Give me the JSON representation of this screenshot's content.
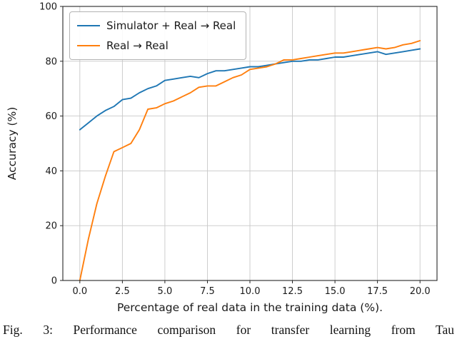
{
  "caption": {
    "text": "Fig. 3: Performance comparison for transfer learning from Tau"
  },
  "chart_data": {
    "type": "line",
    "title": "",
    "xlabel": "Percentage of real data in the training data (%).",
    "ylabel": "Accuracy (%)",
    "xlim": [
      -1,
      21
    ],
    "ylim": [
      0,
      100
    ],
    "grid": true,
    "grid_color": "#c8c8c8",
    "legend_position": "upper left",
    "xticks": [
      0.0,
      2.5,
      5.0,
      7.5,
      10.0,
      12.5,
      15.0,
      17.5,
      20.0
    ],
    "xtick_labels": [
      "0.0",
      "2.5",
      "5.0",
      "7.5",
      "10.0",
      "12.5",
      "15.0",
      "17.5",
      "20.0"
    ],
    "yticks": [
      0,
      20,
      40,
      60,
      80,
      100
    ],
    "ytick_labels": [
      "0",
      "20",
      "40",
      "60",
      "80",
      "100"
    ],
    "x": [
      0,
      0.5,
      1,
      1.5,
      2,
      2.5,
      3,
      3.5,
      4,
      4.5,
      5,
      5.5,
      6,
      6.5,
      7,
      7.5,
      8,
      8.5,
      9,
      9.5,
      10,
      10.5,
      11,
      11.5,
      12,
      12.5,
      13,
      13.5,
      14,
      14.5,
      15,
      15.5,
      16,
      16.5,
      17,
      17.5,
      18,
      18.5,
      19,
      19.5,
      20
    ],
    "series": [
      {
        "name": "Simulator + Real → Real",
        "color": "#1f77b4",
        "values": [
          55,
          57.5,
          60,
          62,
          63.5,
          66,
          66.5,
          68.5,
          70,
          71,
          73,
          73.5,
          74,
          74.5,
          74,
          75.5,
          76.5,
          76.5,
          77,
          77.5,
          78,
          78,
          78.5,
          79,
          79.5,
          80,
          80,
          80.5,
          80.5,
          81,
          81.5,
          81.5,
          82,
          82.5,
          83,
          83.5,
          82.5,
          83,
          83.5,
          84,
          84.5
        ]
      },
      {
        "name": "Real → Real",
        "color": "#ff7f0e",
        "values": [
          0,
          15,
          28,
          38,
          47,
          48.5,
          50,
          55,
          62.5,
          63,
          64.5,
          65.5,
          67,
          68.5,
          70.5,
          71,
          71,
          72.5,
          74,
          75,
          77,
          77.5,
          78,
          79,
          80.5,
          80.5,
          81,
          81.5,
          82,
          82.5,
          83,
          83,
          83.5,
          84,
          84.5,
          85,
          84.5,
          85,
          86,
          86.5,
          87.5
        ]
      }
    ]
  }
}
